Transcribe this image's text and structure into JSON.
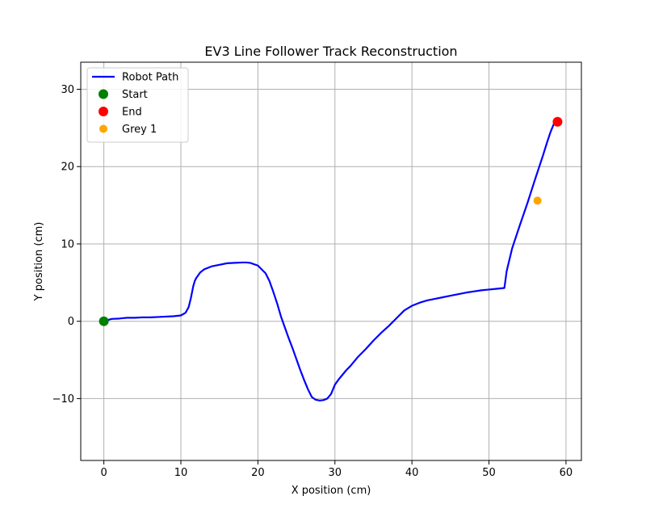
{
  "chart_data": {
    "type": "line",
    "title": "EV3 Line Follower Track Reconstruction",
    "xlabel": "X position (cm)",
    "ylabel": "Y position (cm)",
    "xlim": [
      -3,
      62
    ],
    "ylim": [
      -18,
      33.5
    ],
    "xticks": [
      0,
      10,
      20,
      30,
      40,
      50,
      60
    ],
    "yticks": [
      -10,
      0,
      10,
      20,
      30
    ],
    "grid": true,
    "legend_position": "upper-left",
    "series": [
      {
        "name": "Robot Path",
        "kind": "line",
        "color": "#0000ff",
        "x": [
          0,
          1,
          2,
          3,
          4,
          5,
          6,
          7,
          8,
          9,
          10,
          10.6,
          11,
          11.3,
          11.6,
          11.8,
          12,
          12.5,
          13,
          14,
          15,
          16,
          17,
          18,
          18.5,
          19,
          20,
          21,
          21.5,
          22,
          22.5,
          23,
          23.5,
          24,
          24.5,
          25,
          25.5,
          26,
          26.5,
          27,
          27.5,
          28,
          28.5,
          29,
          29.5,
          30,
          30.5,
          31,
          31.5,
          32,
          33,
          34,
          35,
          36,
          37,
          38,
          39,
          40,
          41,
          42,
          43,
          44,
          45,
          46,
          47,
          48,
          49,
          50,
          51,
          52,
          52.3,
          53,
          54,
          55,
          56,
          57,
          57.5,
          58,
          58.5,
          58.9
        ],
        "y": [
          0,
          0.3,
          0.35,
          0.45,
          0.45,
          0.5,
          0.5,
          0.55,
          0.6,
          0.65,
          0.75,
          1.1,
          1.8,
          3.0,
          4.5,
          5.2,
          5.6,
          6.3,
          6.7,
          7.1,
          7.3,
          7.5,
          7.55,
          7.6,
          7.6,
          7.55,
          7.2,
          6.2,
          5.2,
          3.8,
          2.3,
          0.6,
          -0.8,
          -2.2,
          -3.5,
          -4.9,
          -6.3,
          -7.6,
          -8.8,
          -9.8,
          -10.15,
          -10.25,
          -10.2,
          -10.0,
          -9.4,
          -8.2,
          -7.5,
          -6.9,
          -6.3,
          -5.8,
          -4.6,
          -3.6,
          -2.5,
          -1.5,
          -0.6,
          0.4,
          1.4,
          2.0,
          2.4,
          2.7,
          2.9,
          3.1,
          3.3,
          3.5,
          3.7,
          3.85,
          4.0,
          4.1,
          4.2,
          4.3,
          6.5,
          9.4,
          12.4,
          15.3,
          18.4,
          21.4,
          23.0,
          24.5,
          25.7,
          25.8
        ]
      },
      {
        "name": "Start",
        "kind": "point",
        "color": "#008000",
        "x": [
          0
        ],
        "y": [
          0
        ]
      },
      {
        "name": "End",
        "kind": "point",
        "color": "#ff0000",
        "x": [
          58.9
        ],
        "y": [
          25.8
        ]
      },
      {
        "name": "Grey 1",
        "kind": "point",
        "color": "#ffa500",
        "x": [
          56.3
        ],
        "y": [
          15.6
        ]
      }
    ]
  }
}
